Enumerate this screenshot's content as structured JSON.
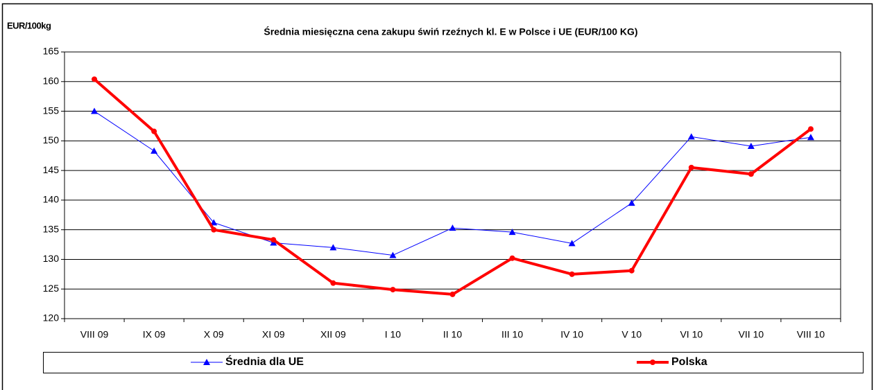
{
  "chart_data": {
    "type": "line",
    "title": "Średnia miesięczna cena zakupu świń rzeźnych kl. E w  Polsce i UE (EUR/100 KG)",
    "y_label": "EUR/100kg",
    "categories": [
      "VIII 09",
      "IX 09",
      "X 09",
      "XI 09",
      "XII 09",
      "I 10",
      "II 10",
      "III 10",
      "IV 10",
      "V 10",
      "VI 10",
      "VII 10",
      "VIII 10"
    ],
    "series": [
      {
        "name": "Średnia dla  UE",
        "color": "#0000ff",
        "marker": "triangle",
        "values": [
          155,
          148.3,
          136.2,
          132.8,
          132,
          130.7,
          135.3,
          134.6,
          132.7,
          139.5,
          150.7,
          149.1,
          150.6
        ]
      },
      {
        "name": "Polska",
        "color": "#ff0000",
        "marker": "circle",
        "values": [
          160.4,
          151.6,
          135,
          133.3,
          126,
          124.9,
          124.1,
          130.2,
          127.5,
          128.1,
          145.5,
          144.4,
          152
        ]
      }
    ],
    "ylim": [
      120,
      165
    ],
    "yticks": [
      120,
      125,
      130,
      135,
      140,
      145,
      150,
      155,
      160,
      165
    ],
    "grid": true,
    "legend": "bottom"
  }
}
